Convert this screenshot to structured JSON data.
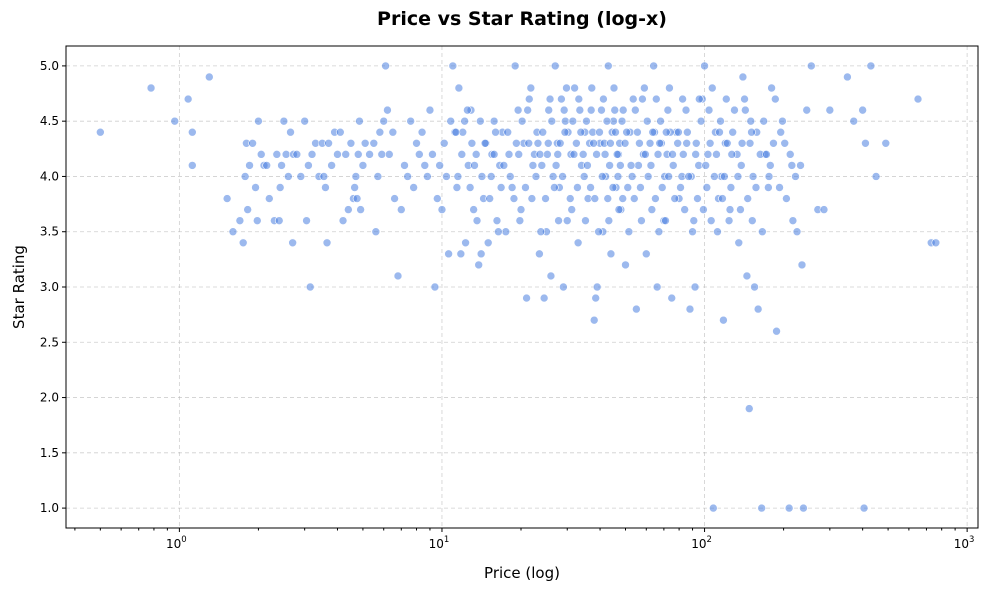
{
  "chart_data": {
    "type": "scatter",
    "title": "Price vs Star Rating (log-x)",
    "xlabel": "Price (log)",
    "ylabel": "Star Rating",
    "xscale": "log",
    "xlim": [
      0.37,
      1100
    ],
    "ylim": [
      0.82,
      5.18
    ],
    "x_major_ticks": [
      1,
      10,
      100,
      1000
    ],
    "x_tick_labels": [
      {
        "base": "10",
        "exp": "0"
      },
      {
        "base": "10",
        "exp": "1"
      },
      {
        "base": "10",
        "exp": "2"
      },
      {
        "base": "10",
        "exp": "3"
      }
    ],
    "y_ticks": [
      1.0,
      1.5,
      2.0,
      2.5,
      3.0,
      3.5,
      4.0,
      4.5,
      5.0
    ],
    "y_tick_labels": [
      "1.0",
      "1.5",
      "2.0",
      "2.5",
      "3.0",
      "3.5",
      "4.0",
      "4.5",
      "5.0"
    ],
    "grid": true,
    "marker_color": "#4a7fe0",
    "marker_alpha": 0.55,
    "points": [
      [
        0.5,
        4.4
      ],
      [
        0.78,
        4.8
      ],
      [
        0.96,
        4.5
      ],
      [
        1.08,
        4.7
      ],
      [
        1.12,
        4.4
      ],
      [
        1.12,
        4.1
      ],
      [
        1.3,
        4.9
      ],
      [
        1.52,
        3.8
      ],
      [
        1.6,
        3.5
      ],
      [
        1.7,
        3.6
      ],
      [
        1.75,
        3.4
      ],
      [
        1.78,
        4.0
      ],
      [
        1.8,
        4.3
      ],
      [
        1.82,
        3.7
      ],
      [
        1.85,
        4.1
      ],
      [
        1.9,
        4.3
      ],
      [
        1.95,
        3.9
      ],
      [
        1.98,
        3.6
      ],
      [
        2.0,
        4.5
      ],
      [
        2.05,
        4.2
      ],
      [
        2.1,
        4.1
      ],
      [
        2.15,
        4.1
      ],
      [
        2.2,
        3.8
      ],
      [
        2.3,
        3.6
      ],
      [
        2.35,
        4.2
      ],
      [
        2.4,
        3.6
      ],
      [
        2.42,
        3.9
      ],
      [
        2.45,
        4.1
      ],
      [
        2.5,
        4.5
      ],
      [
        2.55,
        4.2
      ],
      [
        2.6,
        4.0
      ],
      [
        2.65,
        4.4
      ],
      [
        2.7,
        3.4
      ],
      [
        2.72,
        4.2
      ],
      [
        2.8,
        4.2
      ],
      [
        2.9,
        4.0
      ],
      [
        3.0,
        4.5
      ],
      [
        3.05,
        3.6
      ],
      [
        3.1,
        4.1
      ],
      [
        3.15,
        3.0
      ],
      [
        3.2,
        4.2
      ],
      [
        3.3,
        4.3
      ],
      [
        3.4,
        4.0
      ],
      [
        3.5,
        4.3
      ],
      [
        3.55,
        4.0
      ],
      [
        3.6,
        3.9
      ],
      [
        3.65,
        3.4
      ],
      [
        3.7,
        4.3
      ],
      [
        3.8,
        4.1
      ],
      [
        3.9,
        4.4
      ],
      [
        4.0,
        4.2
      ],
      [
        4.1,
        4.4
      ],
      [
        4.2,
        3.6
      ],
      [
        4.3,
        4.2
      ],
      [
        4.4,
        3.7
      ],
      [
        4.5,
        4.3
      ],
      [
        4.6,
        3.8
      ],
      [
        4.65,
        3.9
      ],
      [
        4.7,
        4.0
      ],
      [
        4.75,
        3.8
      ],
      [
        4.8,
        4.2
      ],
      [
        4.85,
        4.5
      ],
      [
        4.9,
        3.7
      ],
      [
        5.0,
        4.1
      ],
      [
        5.1,
        4.3
      ],
      [
        5.3,
        4.2
      ],
      [
        5.5,
        4.3
      ],
      [
        5.6,
        3.5
      ],
      [
        5.7,
        4.0
      ],
      [
        5.8,
        4.4
      ],
      [
        5.9,
        4.2
      ],
      [
        6.0,
        4.5
      ],
      [
        6.1,
        5.0
      ],
      [
        6.2,
        4.6
      ],
      [
        6.3,
        4.2
      ],
      [
        6.5,
        4.4
      ],
      [
        6.6,
        3.8
      ],
      [
        6.8,
        3.1
      ],
      [
        7.0,
        3.7
      ],
      [
        7.2,
        4.1
      ],
      [
        7.4,
        4.0
      ],
      [
        7.6,
        4.5
      ],
      [
        7.8,
        3.9
      ],
      [
        8.0,
        4.3
      ],
      [
        8.2,
        4.2
      ],
      [
        8.4,
        4.4
      ],
      [
        8.6,
        4.1
      ],
      [
        8.8,
        4.0
      ],
      [
        9.0,
        4.6
      ],
      [
        9.2,
        4.2
      ],
      [
        9.4,
        3.0
      ],
      [
        9.6,
        3.8
      ],
      [
        9.8,
        4.1
      ],
      [
        10.0,
        3.7
      ],
      [
        10.2,
        4.3
      ],
      [
        10.4,
        4.0
      ],
      [
        10.6,
        3.3
      ],
      [
        10.8,
        4.5
      ],
      [
        11.0,
        5.0
      ],
      [
        11.2,
        4.4
      ],
      [
        11.4,
        3.9
      ],
      [
        11.6,
        4.8
      ],
      [
        11.8,
        3.3
      ],
      [
        12.0,
        4.4
      ],
      [
        12.3,
        3.4
      ],
      [
        12.6,
        4.1
      ],
      [
        12.9,
        4.6
      ],
      [
        13.2,
        3.7
      ],
      [
        13.5,
        4.2
      ],
      [
        13.8,
        3.2
      ],
      [
        14.1,
        3.3
      ],
      [
        14.4,
        3.8
      ],
      [
        14.7,
        4.3
      ],
      [
        15.0,
        3.4
      ],
      [
        15.4,
        4.0
      ],
      [
        15.8,
        4.5
      ],
      [
        16.2,
        3.6
      ],
      [
        16.6,
        4.1
      ],
      [
        17.0,
        4.4
      ],
      [
        17.5,
        3.5
      ],
      [
        18.0,
        4.2
      ],
      [
        18.5,
        3.9
      ],
      [
        19.0,
        5.0
      ],
      [
        19.5,
        4.6
      ],
      [
        20.0,
        3.7
      ],
      [
        20.5,
        4.3
      ],
      [
        21.0,
        2.9
      ],
      [
        21.5,
        4.7
      ],
      [
        22.0,
        3.8
      ],
      [
        22.5,
        4.2
      ],
      [
        23.0,
        4.4
      ],
      [
        23.5,
        3.3
      ],
      [
        24.0,
        4.1
      ],
      [
        24.5,
        2.9
      ],
      [
        25.0,
        3.5
      ],
      [
        25.5,
        4.6
      ],
      [
        26.0,
        3.1
      ],
      [
        26.5,
        4.0
      ],
      [
        27.0,
        5.0
      ],
      [
        27.5,
        4.3
      ],
      [
        28.0,
        3.9
      ],
      [
        28.5,
        4.7
      ],
      [
        29.0,
        3.0
      ],
      [
        29.5,
        4.5
      ],
      [
        30.0,
        3.6
      ],
      [
        31.0,
        4.2
      ],
      [
        32.0,
        4.8
      ],
      [
        33.0,
        3.4
      ],
      [
        34.0,
        4.1
      ],
      [
        35.0,
        4.4
      ],
      [
        36.0,
        3.8
      ],
      [
        37.0,
        4.6
      ],
      [
        38.0,
        2.7
      ],
      [
        38.5,
        2.9
      ],
      [
        39.0,
        3.0
      ],
      [
        40.0,
        4.3
      ],
      [
        41.0,
        3.5
      ],
      [
        42.0,
        4.0
      ],
      [
        43.0,
        5.0
      ],
      [
        44.0,
        3.3
      ],
      [
        45.0,
        4.5
      ],
      [
        46.0,
        3.9
      ],
      [
        47.0,
        4.2
      ],
      [
        48.0,
        3.7
      ],
      [
        49.0,
        4.6
      ],
      [
        50.0,
        3.2
      ],
      [
        52.0,
        4.4
      ],
      [
        54.0,
        3.8
      ],
      [
        55.0,
        2.8
      ],
      [
        56.0,
        4.1
      ],
      [
        58.0,
        4.7
      ],
      [
        60.0,
        3.3
      ],
      [
        62.0,
        4.3
      ],
      [
        64.0,
        5.0
      ],
      [
        66.0,
        3.0
      ],
      [
        68.0,
        4.5
      ],
      [
        70.0,
        3.6
      ],
      [
        72.0,
        4.2
      ],
      [
        75.0,
        2.9
      ],
      [
        78.0,
        4.4
      ],
      [
        80.0,
        3.8
      ],
      [
        82.0,
        4.0
      ],
      [
        85.0,
        4.6
      ],
      [
        88.0,
        2.8
      ],
      [
        90.0,
        3.5
      ],
      [
        92.0,
        3.0
      ],
      [
        95.0,
        4.1
      ],
      [
        98.0,
        4.7
      ],
      [
        100.0,
        5.0
      ],
      [
        103.0,
        4.2
      ],
      [
        106.0,
        3.6
      ],
      [
        108.0,
        1.0
      ],
      [
        110.0,
        4.4
      ],
      [
        113.0,
        3.8
      ],
      [
        116.0,
        4.0
      ],
      [
        118.0,
        2.7
      ],
      [
        120.0,
        4.3
      ],
      [
        125.0,
        3.7
      ],
      [
        130.0,
        4.6
      ],
      [
        135.0,
        3.4
      ],
      [
        140.0,
        4.9
      ],
      [
        145.0,
        3.1
      ],
      [
        148.0,
        1.9
      ],
      [
        150.0,
        4.5
      ],
      [
        155.0,
        3.0
      ],
      [
        160.0,
        2.8
      ],
      [
        165.0,
        1.0
      ],
      [
        170.0,
        4.2
      ],
      [
        175.0,
        3.9
      ],
      [
        180.0,
        4.8
      ],
      [
        188.0,
        2.6
      ],
      [
        195.0,
        4.4
      ],
      [
        205.0,
        3.8
      ],
      [
        210.0,
        1.0
      ],
      [
        215.0,
        4.1
      ],
      [
        225.0,
        3.5
      ],
      [
        235.0,
        3.2
      ],
      [
        238.0,
        1.0
      ],
      [
        245.0,
        4.6
      ],
      [
        255.0,
        5.0
      ],
      [
        270.0,
        3.7
      ],
      [
        285.0,
        3.7
      ],
      [
        300.0,
        4.6
      ],
      [
        350.0,
        4.9
      ],
      [
        370.0,
        4.5
      ],
      [
        400.0,
        4.6
      ],
      [
        405.0,
        1.0
      ],
      [
        410.0,
        4.3
      ],
      [
        430.0,
        5.0
      ],
      [
        450.0,
        4.0
      ],
      [
        490.0,
        4.3
      ],
      [
        650.0,
        4.7
      ],
      [
        730.0,
        3.4
      ],
      [
        760.0,
        3.4
      ],
      [
        12.5,
        4.6
      ],
      [
        13.0,
        4.3
      ],
      [
        14.0,
        4.5
      ],
      [
        15.5,
        4.2
      ],
      [
        16.0,
        4.4
      ],
      [
        17.2,
        4.1
      ],
      [
        18.2,
        4.0
      ],
      [
        19.2,
        4.3
      ],
      [
        20.2,
        4.5
      ],
      [
        21.2,
        4.6
      ],
      [
        22.2,
        4.1
      ],
      [
        23.2,
        4.3
      ],
      [
        24.2,
        4.4
      ],
      [
        25.2,
        4.2
      ],
      [
        26.2,
        4.5
      ],
      [
        27.2,
        4.1
      ],
      [
        28.2,
        4.3
      ],
      [
        29.2,
        4.6
      ],
      [
        30.2,
        4.4
      ],
      [
        31.5,
        4.5
      ],
      [
        32.5,
        4.3
      ],
      [
        33.5,
        4.6
      ],
      [
        34.5,
        4.2
      ],
      [
        35.5,
        4.5
      ],
      [
        36.5,
        4.3
      ],
      [
        37.5,
        4.4
      ],
      [
        38.8,
        4.2
      ],
      [
        40.5,
        4.6
      ],
      [
        41.5,
        4.3
      ],
      [
        42.5,
        4.5
      ],
      [
        43.5,
        4.1
      ],
      [
        44.5,
        4.4
      ],
      [
        45.5,
        4.6
      ],
      [
        46.5,
        4.2
      ],
      [
        47.5,
        4.3
      ],
      [
        48.5,
        4.5
      ],
      [
        50.5,
        4.4
      ],
      [
        52.5,
        4.1
      ],
      [
        54.5,
        4.6
      ],
      [
        56.5,
        4.3
      ],
      [
        58.5,
        4.2
      ],
      [
        60.5,
        4.5
      ],
      [
        62.5,
        4.1
      ],
      [
        64.5,
        4.4
      ],
      [
        66.5,
        4.2
      ],
      [
        68.5,
        4.3
      ],
      [
        70.5,
        4.0
      ],
      [
        72.5,
        4.6
      ],
      [
        74.0,
        4.4
      ],
      [
        76.0,
        4.1
      ],
      [
        79.0,
        4.3
      ],
      [
        83.0,
        4.2
      ],
      [
        86.0,
        4.4
      ],
      [
        89.0,
        4.0
      ],
      [
        93.0,
        4.3
      ],
      [
        97.0,
        4.5
      ],
      [
        101.0,
        4.1
      ],
      [
        104.0,
        4.6
      ],
      [
        111.0,
        4.2
      ],
      [
        115.0,
        4.5
      ],
      [
        119.0,
        4.0
      ],
      [
        122.0,
        4.3
      ],
      [
        128.0,
        4.4
      ],
      [
        133.0,
        4.2
      ],
      [
        138.0,
        4.1
      ],
      [
        143.0,
        4.6
      ],
      [
        149.0,
        4.3
      ],
      [
        153.0,
        4.0
      ],
      [
        158.0,
        4.4
      ],
      [
        163.0,
        4.2
      ],
      [
        168.0,
        4.5
      ],
      [
        178.0,
        4.1
      ],
      [
        183.0,
        4.3
      ],
      [
        198.0,
        4.5
      ],
      [
        212.0,
        4.2
      ],
      [
        222.0,
        4.0
      ],
      [
        232.0,
        4.1
      ],
      [
        11.5,
        4.0
      ],
      [
        12.8,
        3.9
      ],
      [
        14.2,
        4.0
      ],
      [
        15.2,
        3.8
      ],
      [
        16.8,
        3.9
      ],
      [
        18.8,
        3.8
      ],
      [
        20.8,
        3.9
      ],
      [
        22.8,
        4.0
      ],
      [
        24.8,
        3.8
      ],
      [
        26.8,
        3.9
      ],
      [
        28.8,
        4.0
      ],
      [
        30.8,
        3.8
      ],
      [
        32.8,
        3.9
      ],
      [
        34.8,
        4.0
      ],
      [
        36.8,
        3.9
      ],
      [
        38.2,
        3.8
      ],
      [
        40.8,
        4.0
      ],
      [
        42.8,
        3.8
      ],
      [
        44.8,
        3.9
      ],
      [
        46.8,
        4.0
      ],
      [
        48.8,
        3.8
      ],
      [
        51.0,
        3.9
      ],
      [
        53.0,
        4.0
      ],
      [
        57.0,
        3.9
      ],
      [
        61.0,
        4.0
      ],
      [
        65.0,
        3.8
      ],
      [
        69.0,
        3.9
      ],
      [
        73.0,
        4.0
      ],
      [
        77.0,
        3.8
      ],
      [
        81.0,
        3.9
      ],
      [
        87.0,
        4.0
      ],
      [
        94.0,
        3.8
      ],
      [
        102.0,
        3.9
      ],
      [
        109.0,
        4.0
      ],
      [
        117.0,
        3.8
      ],
      [
        126.0,
        3.9
      ],
      [
        134.0,
        4.0
      ],
      [
        146.0,
        3.8
      ],
      [
        157.0,
        3.9
      ],
      [
        176.0,
        4.0
      ],
      [
        193.0,
        3.9
      ],
      [
        13.6,
        3.6
      ],
      [
        16.4,
        3.5
      ],
      [
        19.8,
        3.6
      ],
      [
        23.8,
        3.5
      ],
      [
        27.8,
        3.6
      ],
      [
        31.2,
        3.7
      ],
      [
        35.2,
        3.6
      ],
      [
        39.5,
        3.5
      ],
      [
        43.2,
        3.6
      ],
      [
        47.2,
        3.7
      ],
      [
        51.5,
        3.5
      ],
      [
        57.5,
        3.6
      ],
      [
        63.0,
        3.7
      ],
      [
        67.0,
        3.5
      ],
      [
        71.0,
        3.6
      ],
      [
        84.0,
        3.7
      ],
      [
        91.0,
        3.6
      ],
      [
        99.0,
        3.7
      ],
      [
        112.0,
        3.5
      ],
      [
        124.0,
        3.6
      ],
      [
        137.0,
        3.7
      ],
      [
        152.0,
        3.6
      ],
      [
        166.0,
        3.5
      ],
      [
        217.0,
        3.6
      ],
      [
        21.8,
        4.8
      ],
      [
        25.8,
        4.7
      ],
      [
        29.8,
        4.8
      ],
      [
        33.2,
        4.7
      ],
      [
        37.2,
        4.8
      ],
      [
        41.2,
        4.7
      ],
      [
        45.2,
        4.8
      ],
      [
        53.5,
        4.7
      ],
      [
        59.0,
        4.8
      ],
      [
        65.5,
        4.7
      ],
      [
        73.5,
        4.8
      ],
      [
        82.5,
        4.7
      ],
      [
        95.5,
        4.7
      ],
      [
        107.0,
        4.8
      ],
      [
        121.0,
        4.7
      ],
      [
        142.0,
        4.7
      ],
      [
        186.0,
        4.7
      ],
      [
        11.3,
        4.4
      ],
      [
        11.9,
        4.2
      ],
      [
        12.2,
        4.5
      ],
      [
        13.3,
        4.1
      ],
      [
        14.6,
        4.3
      ],
      [
        15.8,
        4.2
      ],
      [
        17.8,
        4.4
      ],
      [
        19.6,
        4.2
      ],
      [
        21.4,
        4.3
      ],
      [
        23.6,
        4.2
      ],
      [
        25.4,
        4.3
      ],
      [
        27.6,
        4.2
      ],
      [
        29.4,
        4.4
      ],
      [
        31.8,
        4.2
      ],
      [
        33.8,
        4.4
      ],
      [
        35.8,
        4.1
      ],
      [
        37.8,
        4.3
      ],
      [
        39.8,
        4.4
      ],
      [
        41.8,
        4.2
      ],
      [
        43.8,
        4.3
      ],
      [
        45.8,
        4.4
      ],
      [
        47.8,
        4.1
      ],
      [
        49.8,
        4.3
      ],
      [
        55.5,
        4.4
      ],
      [
        59.5,
        4.2
      ],
      [
        63.5,
        4.4
      ],
      [
        67.5,
        4.3
      ],
      [
        71.5,
        4.4
      ],
      [
        75.5,
        4.2
      ],
      [
        79.5,
        4.4
      ],
      [
        85.5,
        4.3
      ],
      [
        92.5,
        4.2
      ],
      [
        105.0,
        4.3
      ],
      [
        114.0,
        4.4
      ],
      [
        127.0,
        4.2
      ],
      [
        139.0,
        4.3
      ],
      [
        151.0,
        4.4
      ],
      [
        172.0,
        4.2
      ],
      [
        202.0,
        4.3
      ]
    ]
  }
}
